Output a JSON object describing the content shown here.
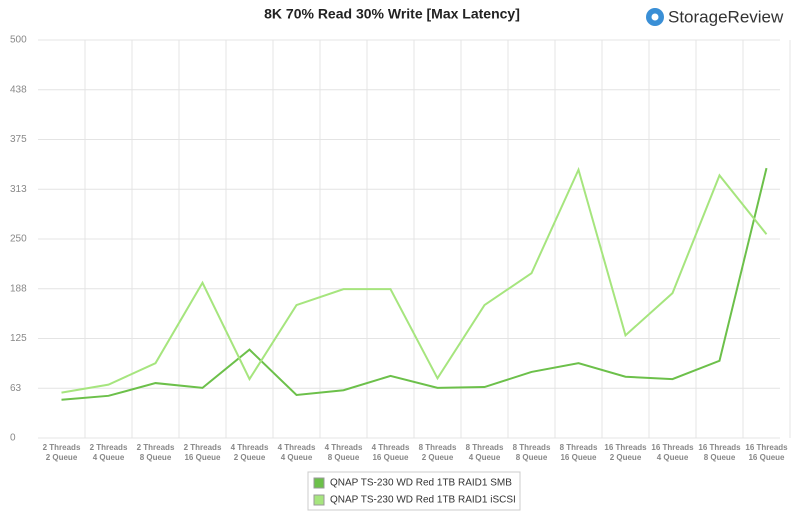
{
  "brand": "StorageReview",
  "chart_data": {
    "type": "line",
    "title": "8K 70% Read 30% Write [Max Latency]",
    "categories": [
      "2 Threads\n2 Queue",
      "2 Threads\n4 Queue",
      "2 Threads\n8 Queue",
      "2 Threads\n16 Queue",
      "4 Threads\n2 Queue",
      "4 Threads\n4 Queue",
      "4 Threads\n8 Queue",
      "4 Threads\n16 Queue",
      "8 Threads\n2 Queue",
      "8 Threads\n4 Queue",
      "8 Threads\n8 Queue",
      "8 Threads\n16 Queue",
      "16 Threads\n2 Queue",
      "16 Threads\n4 Queue",
      "16 Threads\n8 Queue",
      "16 Threads\n16 Queue"
    ],
    "series": [
      {
        "name": "QNAP TS-230 WD Red 1TB RAID1 SMB",
        "color": "#6cc04a",
        "values": [
          48,
          53,
          69,
          63,
          111,
          54,
          60,
          78,
          63,
          64,
          83,
          94,
          77,
          74,
          97,
          339
        ]
      },
      {
        "name": "QNAP TS-230 WD Red 1TB RAID1 iSCSI",
        "color": "#a6e57e",
        "values": [
          57,
          67,
          94,
          195,
          74,
          167,
          187,
          187,
          75,
          167,
          207,
          337,
          129,
          182,
          330,
          256
        ]
      }
    ],
    "ylim": [
      0,
      500
    ],
    "yticks": [
      0,
      {
        "value": 62.5,
        "label": "63"
      },
      125,
      {
        "value": 187.5,
        "label": "188"
      },
      250,
      {
        "value": 312.5,
        "label": "313"
      },
      375,
      {
        "value": 437.5,
        "label": "438"
      },
      500
    ],
    "grid": true
  }
}
